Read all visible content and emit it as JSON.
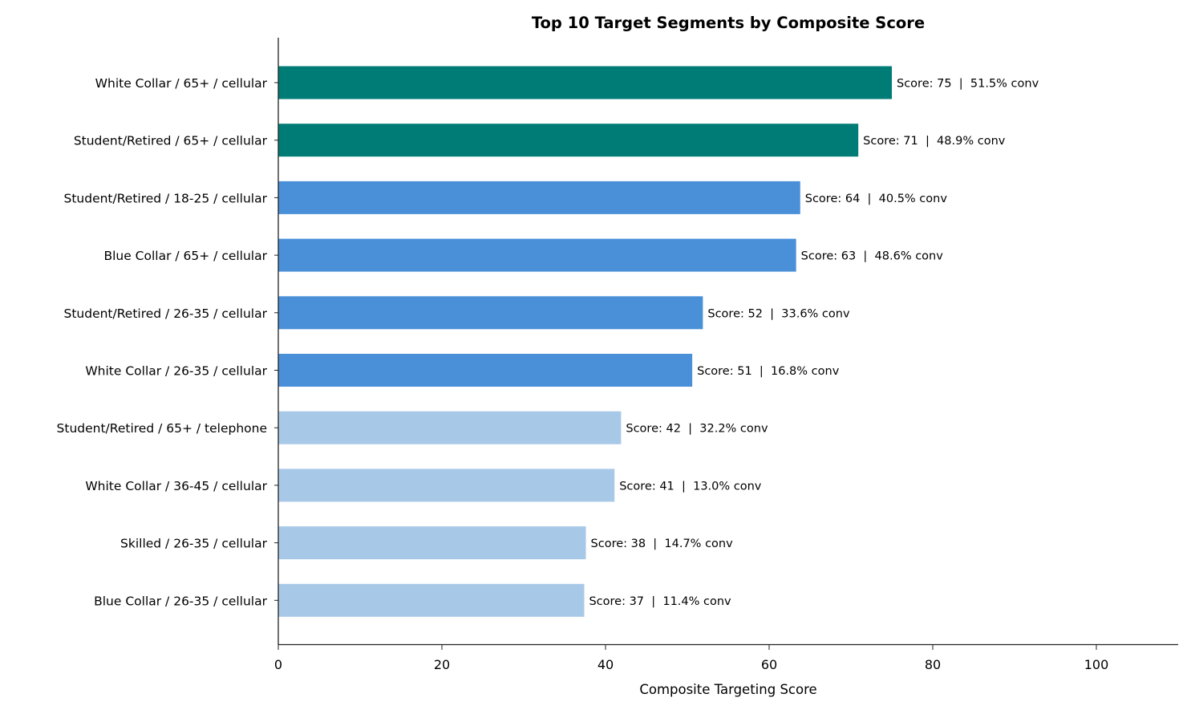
{
  "chart_data": {
    "type": "bar",
    "orientation": "horizontal",
    "title": "Top 10 Target Segments by Composite Score",
    "xlabel": "Composite Targeting Score",
    "ylabel": "",
    "xlim": [
      0,
      110
    ],
    "xticks": [
      0,
      20,
      40,
      60,
      80,
      100
    ],
    "grid": false,
    "categories": [
      "White Collar / 65+ / cellular",
      "Student/Retired / 65+ / cellular",
      "Student/Retired / 18-25 / cellular",
      "Blue Collar / 65+ / cellular",
      "Student/Retired / 26-35 / cellular",
      "White Collar / 26-35 / cellular",
      "Student/Retired / 65+ / telephone",
      "White Collar / 36-45 / cellular",
      "Skilled / 26-35 / cellular",
      "Blue Collar / 26-35 / cellular"
    ],
    "values": [
      75.0,
      70.9,
      63.8,
      63.3,
      51.9,
      50.6,
      41.9,
      41.1,
      37.6,
      37.4
    ],
    "data_labels": [
      "Score: 75  |  51.5% conv",
      "Score: 71  |  48.9% conv",
      "Score: 64  |  40.5% conv",
      "Score: 63  |  48.6% conv",
      "Score: 52  |  33.6% conv",
      "Score: 51  |  16.8% conv",
      "Score: 42  |  32.2% conv",
      "Score: 41  |  13.0% conv",
      "Score: 38  |  14.7% conv",
      "Score: 37  |  11.4% conv"
    ],
    "bar_colors": [
      "#007c76",
      "#007c76",
      "#4a90d9",
      "#4a90d9",
      "#4a90d9",
      "#4a90d9",
      "#a8c8e8",
      "#a8c8e8",
      "#a8c8e8",
      "#a8c8e8"
    ]
  }
}
